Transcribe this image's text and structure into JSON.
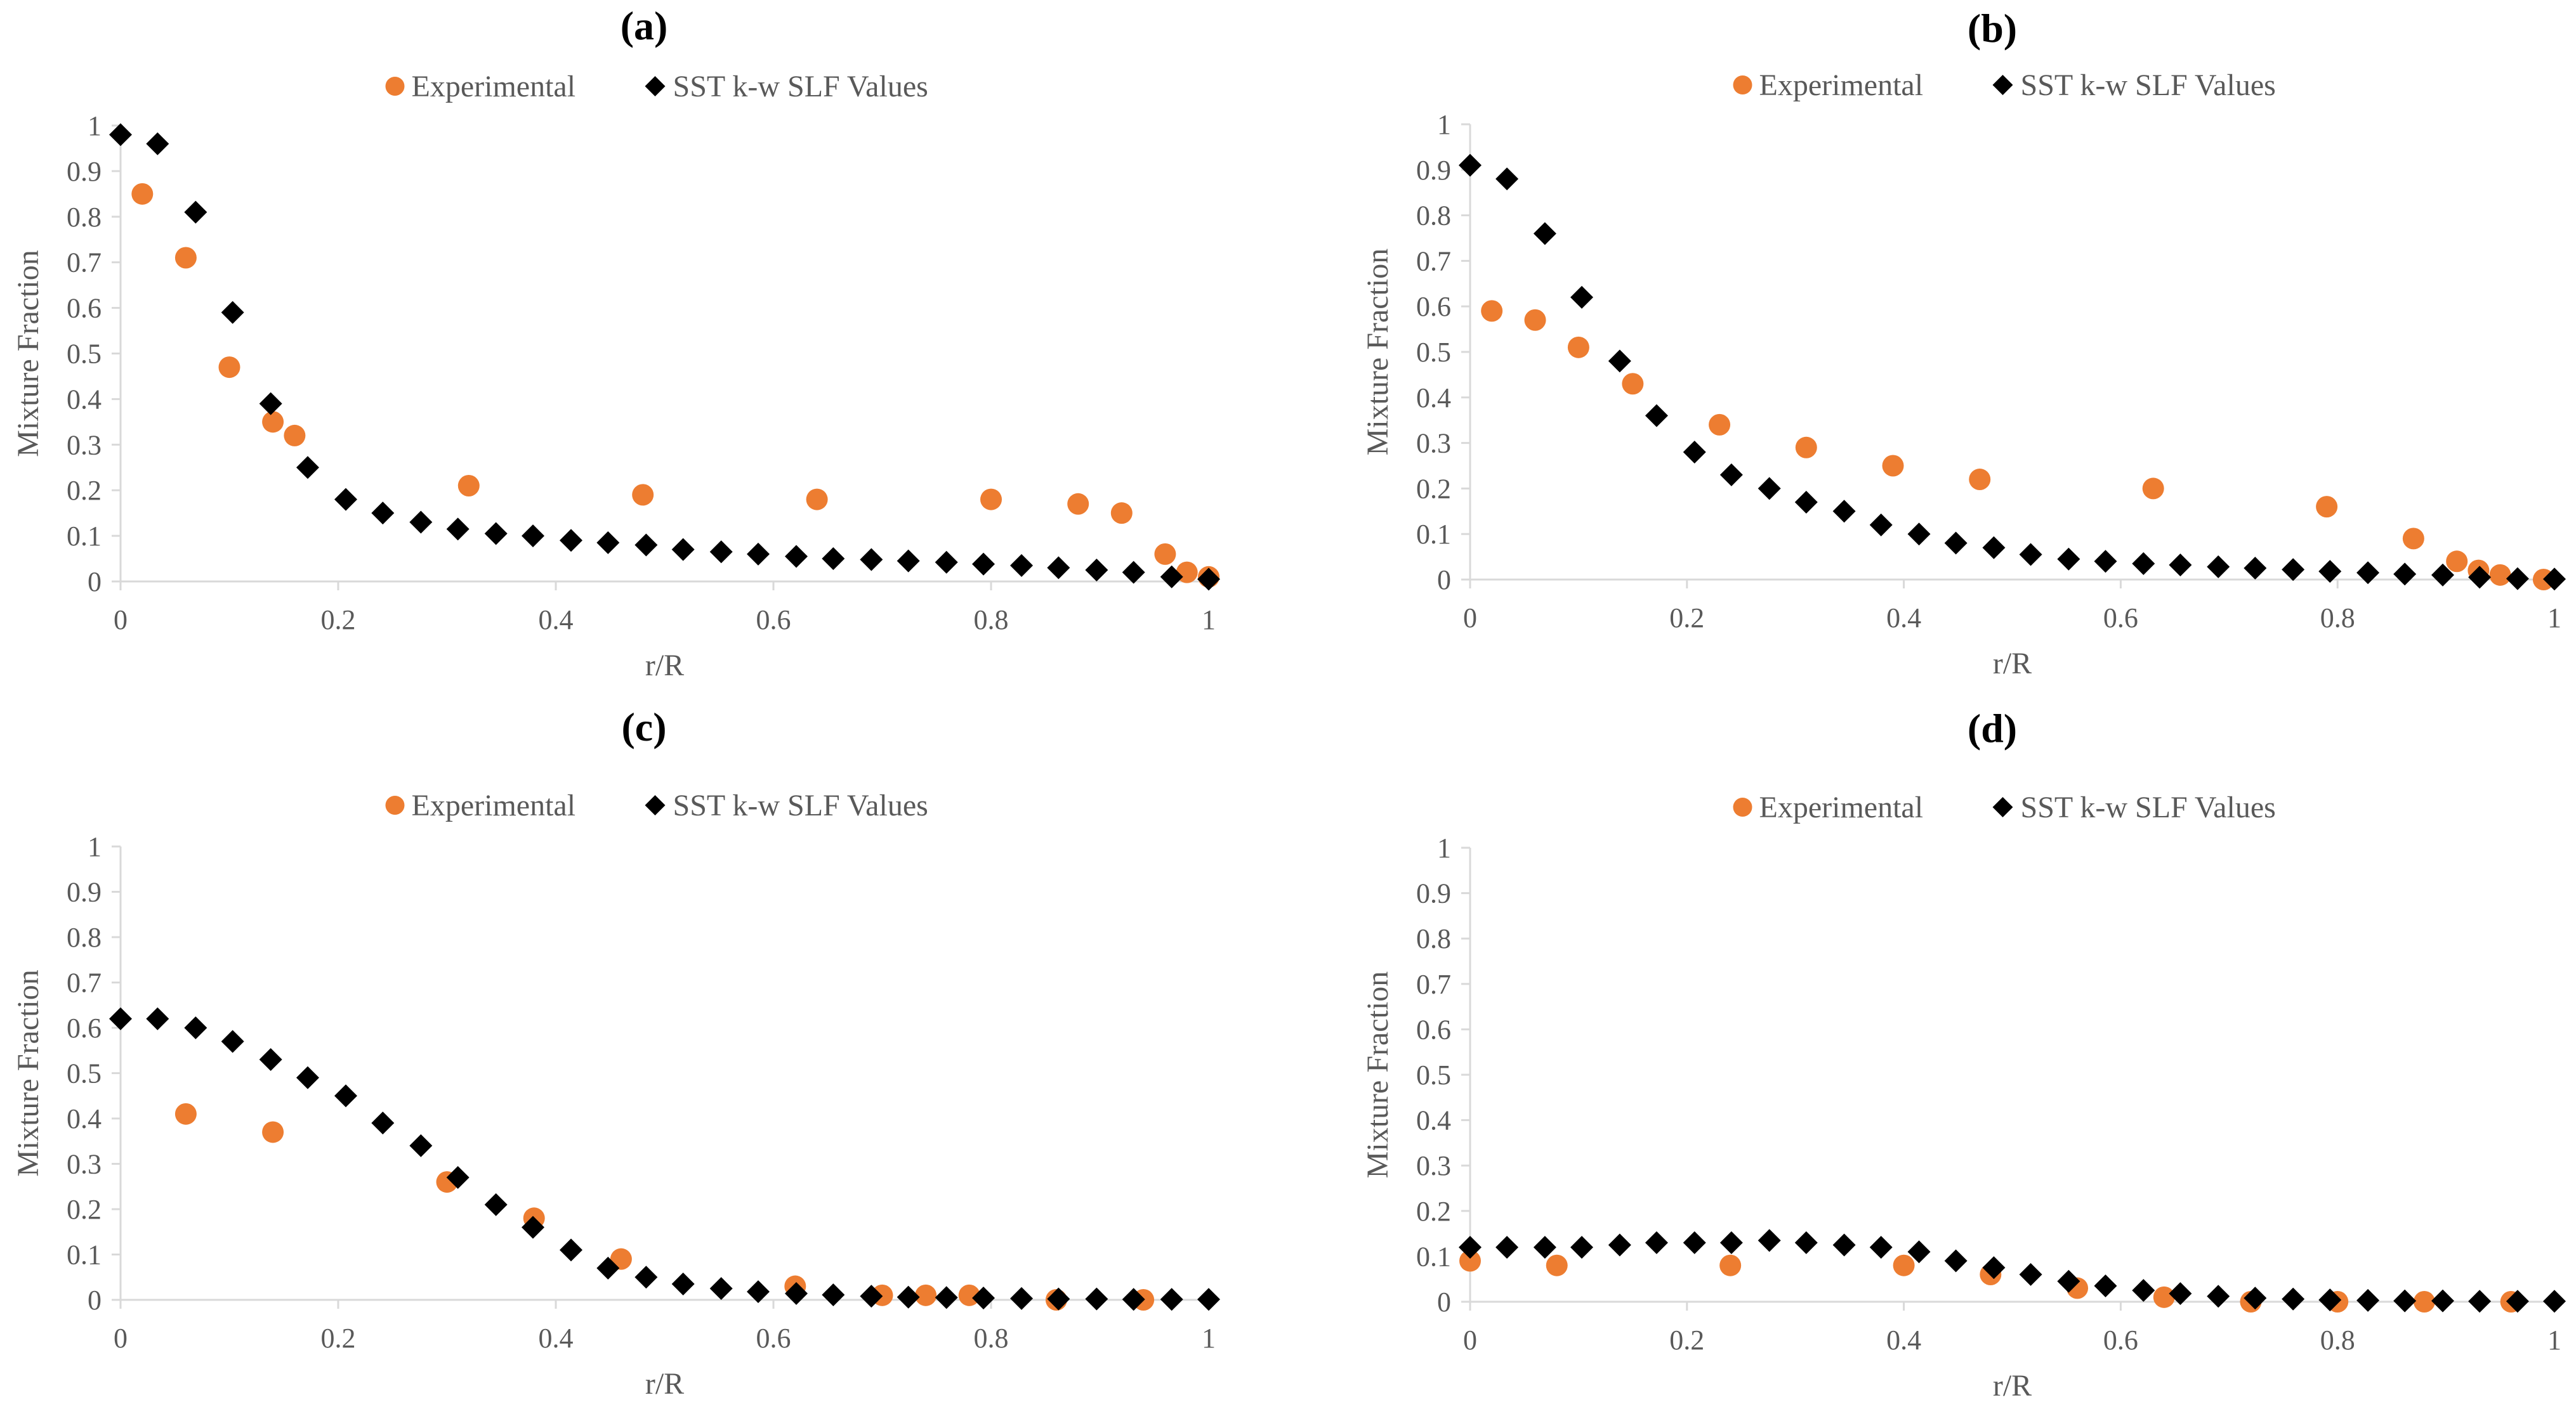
{
  "colors": {
    "experimental": "#ED7D31",
    "model": "#000000",
    "axis": "#D9D9D9",
    "text": "#595959"
  },
  "chart_data": [
    {
      "type": "scatter",
      "title": "(a)",
      "xlabel": "r/R",
      "ylabel": "Mixture Fraction",
      "xlim": [
        0,
        1
      ],
      "ylim": [
        0,
        1
      ],
      "xticks": [
        "0",
        "0.2",
        "0.4",
        "0.6",
        "0.8",
        "1"
      ],
      "yticks": [
        "0",
        "0.1",
        "0.2",
        "0.3",
        "0.4",
        "0.5",
        "0.6",
        "0.7",
        "0.8",
        "0.9",
        "1"
      ],
      "legend": [
        "Experimental",
        "SST k-w SLF Values"
      ],
      "series": [
        {
          "name": "Experimental",
          "marker": "circle",
          "x": [
            0.02,
            0.06,
            0.1,
            0.14,
            0.16,
            0.32,
            0.48,
            0.64,
            0.8,
            0.88,
            0.92,
            0.96,
            0.98,
            1.0
          ],
          "y": [
            0.85,
            0.71,
            0.47,
            0.35,
            0.32,
            0.21,
            0.19,
            0.18,
            0.18,
            0.17,
            0.15,
            0.06,
            0.02,
            0.01
          ]
        },
        {
          "name": "SST k-w SLF Values",
          "marker": "diamond",
          "x": [
            0.0,
            0.034,
            0.069,
            0.103,
            0.138,
            0.172,
            0.207,
            0.241,
            0.276,
            0.31,
            0.345,
            0.379,
            0.414,
            0.448,
            0.483,
            0.517,
            0.552,
            0.586,
            0.621,
            0.655,
            0.69,
            0.724,
            0.759,
            0.793,
            0.828,
            0.862,
            0.897,
            0.931,
            0.966,
            1.0
          ],
          "y": [
            0.98,
            0.96,
            0.81,
            0.59,
            0.39,
            0.25,
            0.18,
            0.15,
            0.13,
            0.115,
            0.105,
            0.1,
            0.09,
            0.085,
            0.08,
            0.07,
            0.065,
            0.06,
            0.055,
            0.05,
            0.048,
            0.045,
            0.042,
            0.038,
            0.035,
            0.03,
            0.025,
            0.02,
            0.01,
            0.005
          ]
        }
      ]
    },
    {
      "type": "scatter",
      "title": "(b)",
      "xlabel": "r/R",
      "ylabel": "Mixture Fraction",
      "xlim": [
        0,
        1
      ],
      "ylim": [
        0,
        1
      ],
      "xticks": [
        "0",
        "0.2",
        "0.4",
        "0.6",
        "0.8",
        "1"
      ],
      "yticks": [
        "0",
        "0.1",
        "0.2",
        "0.3",
        "0.4",
        "0.5",
        "0.6",
        "0.7",
        "0.8",
        "0.9",
        "1"
      ],
      "legend": [
        "Experimental",
        "SST k-w SLF Values"
      ],
      "series": [
        {
          "name": "Experimental",
          "marker": "circle",
          "x": [
            0.02,
            0.06,
            0.1,
            0.15,
            0.23,
            0.31,
            0.39,
            0.47,
            0.63,
            0.79,
            0.87,
            0.91,
            0.93,
            0.95,
            0.99
          ],
          "y": [
            0.59,
            0.57,
            0.51,
            0.43,
            0.34,
            0.29,
            0.25,
            0.22,
            0.2,
            0.16,
            0.09,
            0.04,
            0.02,
            0.01,
            0.0
          ]
        },
        {
          "name": "SST k-w SLF Values",
          "marker": "diamond",
          "x": [
            0.0,
            0.034,
            0.069,
            0.103,
            0.138,
            0.172,
            0.207,
            0.241,
            0.276,
            0.31,
            0.345,
            0.379,
            0.414,
            0.448,
            0.483,
            0.517,
            0.552,
            0.586,
            0.621,
            0.655,
            0.69,
            0.724,
            0.759,
            0.793,
            0.828,
            0.862,
            0.897,
            0.931,
            0.966,
            1.0
          ],
          "y": [
            0.91,
            0.88,
            0.76,
            0.62,
            0.48,
            0.36,
            0.28,
            0.23,
            0.2,
            0.17,
            0.15,
            0.12,
            0.1,
            0.08,
            0.07,
            0.055,
            0.045,
            0.04,
            0.035,
            0.032,
            0.028,
            0.025,
            0.022,
            0.018,
            0.015,
            0.012,
            0.01,
            0.005,
            0.002,
            0.001
          ]
        }
      ]
    },
    {
      "type": "scatter",
      "title": "(c)",
      "xlabel": "r/R",
      "ylabel": "Mixture Fraction",
      "xlim": [
        0,
        1
      ],
      "ylim": [
        0,
        1
      ],
      "xticks": [
        "0",
        "0.2",
        "0.4",
        "0.6",
        "0.8",
        "1"
      ],
      "yticks": [
        "0",
        "0.1",
        "0.2",
        "0.3",
        "0.4",
        "0.5",
        "0.6",
        "0.7",
        "0.8",
        "0.9",
        "1"
      ],
      "legend": [
        "Experimental",
        "SST k-w SLF Values"
      ],
      "series": [
        {
          "name": "Experimental",
          "marker": "circle",
          "x": [
            0.06,
            0.14,
            0.3,
            0.38,
            0.46,
            0.62,
            0.7,
            0.74,
            0.78,
            0.86,
            0.94
          ],
          "y": [
            0.41,
            0.37,
            0.26,
            0.18,
            0.09,
            0.03,
            0.01,
            0.01,
            0.01,
            0.0,
            0.0
          ]
        },
        {
          "name": "SST k-w SLF Values",
          "marker": "diamond",
          "x": [
            0.0,
            0.034,
            0.069,
            0.103,
            0.138,
            0.172,
            0.207,
            0.241,
            0.276,
            0.31,
            0.345,
            0.379,
            0.414,
            0.448,
            0.483,
            0.517,
            0.552,
            0.586,
            0.621,
            0.655,
            0.69,
            0.724,
            0.759,
            0.793,
            0.828,
            0.862,
            0.897,
            0.931,
            0.966,
            1.0
          ],
          "y": [
            0.62,
            0.62,
            0.6,
            0.57,
            0.53,
            0.49,
            0.45,
            0.39,
            0.34,
            0.27,
            0.21,
            0.16,
            0.11,
            0.07,
            0.05,
            0.035,
            0.025,
            0.018,
            0.014,
            0.011,
            0.008,
            0.006,
            0.005,
            0.004,
            0.003,
            0.002,
            0.002,
            0.001,
            0.001,
            0.001
          ]
        }
      ]
    },
    {
      "type": "scatter",
      "title": "(d)",
      "xlabel": "r/R",
      "ylabel": "Mixture Fraction",
      "xlim": [
        0,
        1
      ],
      "ylim": [
        0,
        1
      ],
      "xticks": [
        "0",
        "0.2",
        "0.4",
        "0.6",
        "0.8",
        "1"
      ],
      "yticks": [
        "0",
        "0.1",
        "0.2",
        "0.3",
        "0.4",
        "0.5",
        "0.6",
        "0.7",
        "0.8",
        "0.9",
        "1"
      ],
      "legend": [
        "Experimental",
        "SST k-w SLF Values"
      ],
      "series": [
        {
          "name": "Experimental",
          "marker": "circle",
          "x": [
            0.0,
            0.08,
            0.24,
            0.4,
            0.48,
            0.56,
            0.64,
            0.72,
            0.8,
            0.88,
            0.96
          ],
          "y": [
            0.09,
            0.08,
            0.08,
            0.08,
            0.06,
            0.03,
            0.01,
            0.0,
            0.0,
            0.0,
            0.0
          ]
        },
        {
          "name": "SST k-w SLF Values",
          "marker": "diamond",
          "x": [
            0.0,
            0.034,
            0.069,
            0.103,
            0.138,
            0.172,
            0.207,
            0.241,
            0.276,
            0.31,
            0.345,
            0.379,
            0.414,
            0.448,
            0.483,
            0.517,
            0.552,
            0.586,
            0.621,
            0.655,
            0.69,
            0.724,
            0.759,
            0.793,
            0.828,
            0.862,
            0.897,
            0.931,
            0.966,
            1.0
          ],
          "y": [
            0.12,
            0.12,
            0.12,
            0.12,
            0.125,
            0.13,
            0.13,
            0.13,
            0.135,
            0.13,
            0.125,
            0.12,
            0.11,
            0.09,
            0.075,
            0.06,
            0.045,
            0.035,
            0.025,
            0.018,
            0.012,
            0.008,
            0.006,
            0.004,
            0.003,
            0.002,
            0.002,
            0.001,
            0.001,
            0.001
          ]
        }
      ]
    }
  ]
}
